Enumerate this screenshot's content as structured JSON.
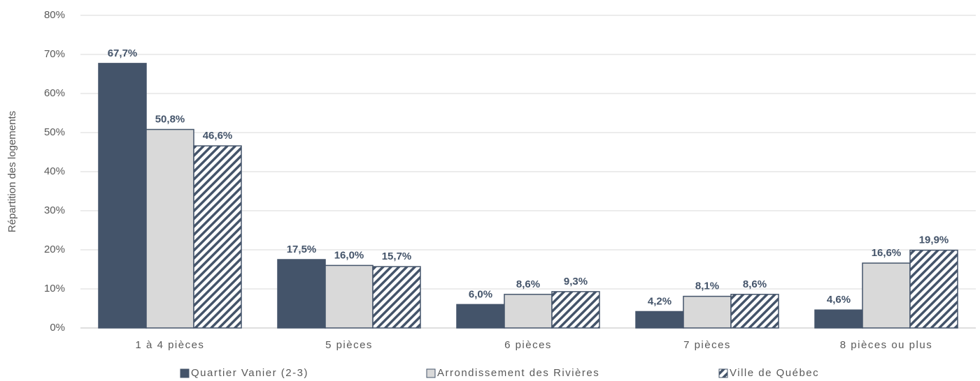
{
  "chart_data": {
    "type": "bar",
    "y_label": "Répartition des logements",
    "categories": [
      "1 à 4 pièces",
      "5 pièces",
      "6 pièces",
      "7 pièces",
      "8 pièces ou plus"
    ],
    "series": [
      {
        "name": "Quartier Vanier (2-3)",
        "color": "#44546a",
        "fill_style": "solid",
        "values": [
          67.7,
          17.5,
          6.0,
          4.2,
          4.6
        ],
        "value_labels": [
          "67,7%",
          "17,5%",
          "6,0%",
          "4,2%",
          "4,6%"
        ]
      },
      {
        "name": "Arrondissement des Rivières",
        "color": "#d9d9d9",
        "fill_style": "solid",
        "values": [
          50.8,
          16.0,
          8.6,
          8.1,
          16.6
        ],
        "value_labels": [
          "50,8%",
          "16,0%",
          "8,6%",
          "8,1%",
          "16,6%"
        ]
      },
      {
        "name": "Ville de Québec",
        "color": "#44546a",
        "fill_style": "hatch",
        "values": [
          46.6,
          15.7,
          9.3,
          8.6,
          19.9
        ],
        "value_labels": [
          "46,6%",
          "15,7%",
          "9,3%",
          "8,6%",
          "19,9%"
        ]
      }
    ],
    "ylim": [
      0,
      80
    ],
    "yticks": [
      {
        "value": 0,
        "label": "0%"
      },
      {
        "value": 10,
        "label": "10%"
      },
      {
        "value": 20,
        "label": "20%"
      },
      {
        "value": 30,
        "label": "30%"
      },
      {
        "value": 40,
        "label": "40%"
      },
      {
        "value": 50,
        "label": "50%"
      },
      {
        "value": 60,
        "label": "60%"
      },
      {
        "value": 70,
        "label": "70%"
      },
      {
        "value": 80,
        "label": "80%"
      }
    ],
    "grid": true,
    "legend": "bottom"
  }
}
